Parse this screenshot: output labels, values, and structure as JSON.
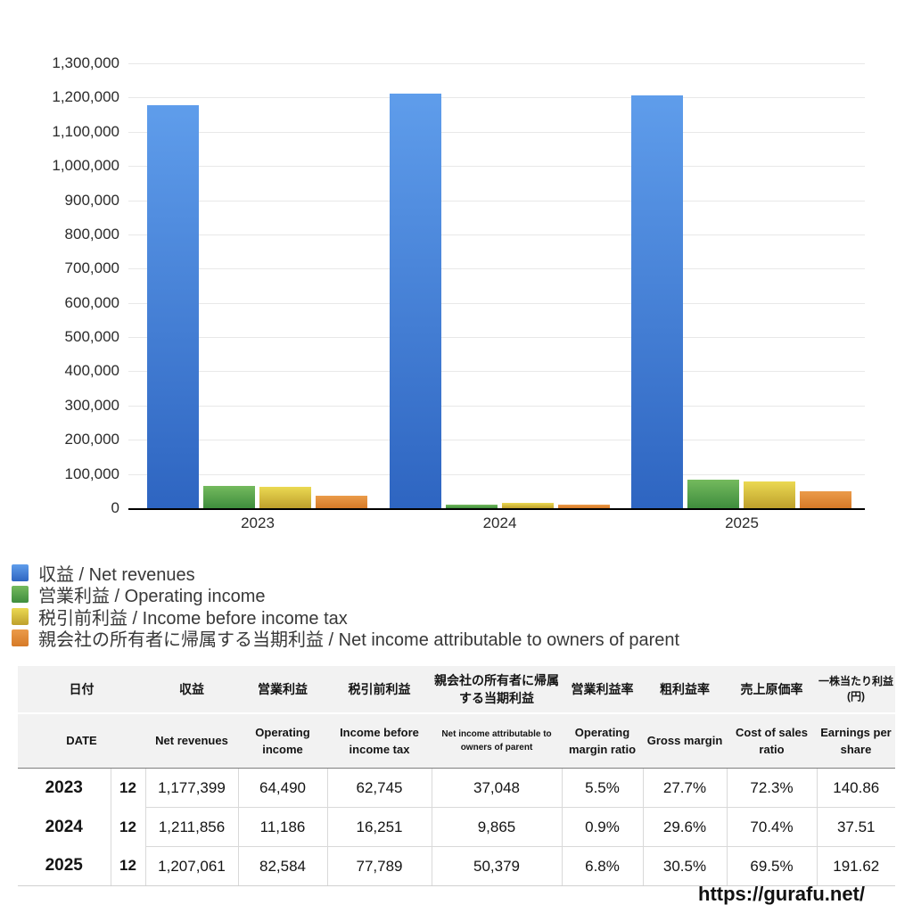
{
  "chart_data": {
    "type": "bar",
    "categories": [
      "2023",
      "2024",
      "2025"
    ],
    "series": [
      {
        "name": "収益 / Net revenues",
        "color_top": "#5f9deb",
        "color_bottom": "#2e65c1",
        "values": [
          1177399,
          1211856,
          1207061
        ]
      },
      {
        "name": "営業利益 / Operating income",
        "color_top": "#74ba5e",
        "color_bottom": "#3f8d3d",
        "values": [
          64490,
          11186,
          82584
        ]
      },
      {
        "name": "税引前利益 / Income before income tax",
        "color_top": "#ebd952",
        "color_bottom": "#bea02c",
        "values": [
          62745,
          16251,
          77789
        ]
      },
      {
        "name": "親会社の所有者に帰属する当期利益 / Net income attributable to owners of parent",
        "color_top": "#eb9b4a",
        "color_bottom": "#d67a27",
        "values": [
          37048,
          9865,
          50379
        ]
      }
    ],
    "title": "",
    "xlabel": "",
    "ylabel": "",
    "ylim": [
      0,
      1300000
    ],
    "ytick_interval": 100000,
    "grid": true,
    "legend_position": "bottom-left"
  },
  "table": {
    "header_jp": [
      "日付",
      "収益",
      "営業利益",
      "税引前利益",
      "親会社の所有者に帰属する当期利益",
      "営業利益率",
      "粗利益率",
      "売上原価率",
      "一株当たり利益(円)"
    ],
    "header_en": [
      "DATE",
      "Net revenues",
      "Operating income",
      "Income before income tax",
      "Net income attributable to owners of parent",
      "Operating margin ratio",
      "Gross margin",
      "Cost of sales ratio",
      "Earnings per share"
    ],
    "rows": [
      {
        "year": "2023",
        "month": "12",
        "values": [
          "1,177,399",
          "64,490",
          "62,745",
          "37,048",
          "5.5%",
          "27.7%",
          "72.3%",
          "140.86"
        ]
      },
      {
        "year": "2024",
        "month": "12",
        "values": [
          "1,211,856",
          "11,186",
          "16,251",
          "9,865",
          "0.9%",
          "29.6%",
          "70.4%",
          "37.51"
        ]
      },
      {
        "year": "2025",
        "month": "12",
        "values": [
          "1,207,061",
          "82,584",
          "77,789",
          "50,379",
          "6.8%",
          "30.5%",
          "69.5%",
          "191.62"
        ]
      }
    ]
  },
  "footer": {
    "url": "https://gurafu.net/"
  }
}
